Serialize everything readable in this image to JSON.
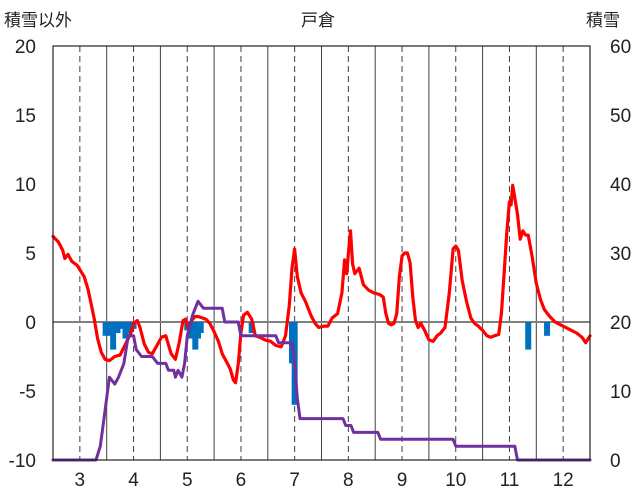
{
  "chart_data": {
    "type": "line",
    "title": "戸倉",
    "ylabel_left": "積雪以外",
    "ylabel_right": "積雪",
    "xlim": [
      2.5,
      12.5
    ],
    "ylim_left": [
      -10,
      20
    ],
    "ylim_right": [
      0,
      60
    ],
    "x_ticks": [
      3,
      4,
      5,
      6,
      7,
      8,
      9,
      10,
      11,
      12
    ],
    "y_ticks_left": [
      -10,
      -5,
      0,
      5,
      10,
      15,
      20
    ],
    "y_ticks_right": [
      0,
      10,
      20,
      30,
      40,
      50,
      60
    ],
    "grid": "vertical dashed at each x tick, vertical solid between ticks, horizontal zero line",
    "colors": {
      "temperature": "#ff0000",
      "snow_depth": "#7030a0",
      "precipitation": "#0070c0",
      "zero_line": "#808080",
      "grid": "#404040"
    },
    "series": [
      {
        "role": "temperature",
        "axis": "left",
        "kind": "line",
        "points": [
          [
            2.5,
            6.2
          ],
          [
            2.6,
            5.8
          ],
          [
            2.68,
            5.2
          ],
          [
            2.72,
            4.6
          ],
          [
            2.78,
            4.9
          ],
          [
            2.85,
            4.4
          ],
          [
            2.95,
            4.1
          ],
          [
            3.0,
            3.8
          ],
          [
            3.08,
            3.3
          ],
          [
            3.15,
            2.4
          ],
          [
            3.2,
            1.5
          ],
          [
            3.27,
            0.2
          ],
          [
            3.33,
            -1.2
          ],
          [
            3.4,
            -2.2
          ],
          [
            3.47,
            -2.7
          ],
          [
            3.55,
            -2.8
          ],
          [
            3.65,
            -2.5
          ],
          [
            3.75,
            -2.4
          ],
          [
            3.85,
            -1.6
          ],
          [
            3.95,
            -0.8
          ],
          [
            4.0,
            -0.1
          ],
          [
            4.07,
            0.1
          ],
          [
            4.12,
            -0.4
          ],
          [
            4.2,
            -1.6
          ],
          [
            4.28,
            -2.2
          ],
          [
            4.35,
            -2.3
          ],
          [
            4.45,
            -1.6
          ],
          [
            4.52,
            -1.1
          ],
          [
            4.6,
            -1.0
          ],
          [
            4.7,
            -2.3
          ],
          [
            4.78,
            -2.7
          ],
          [
            4.85,
            -1.5
          ],
          [
            4.92,
            0.1
          ],
          [
            4.97,
            0.2
          ],
          [
            5.02,
            -0.4
          ],
          [
            5.1,
            0.2
          ],
          [
            5.15,
            0.4
          ],
          [
            5.2,
            0.4
          ],
          [
            5.28,
            0.3
          ],
          [
            5.35,
            0.2
          ],
          [
            5.42,
            -0.1
          ],
          [
            5.5,
            -0.7
          ],
          [
            5.58,
            -1.4
          ],
          [
            5.65,
            -2.3
          ],
          [
            5.72,
            -2.8
          ],
          [
            5.8,
            -3.4
          ],
          [
            5.86,
            -4.2
          ],
          [
            5.9,
            -4.4
          ],
          [
            5.95,
            -3.0
          ],
          [
            6.0,
            -0.8
          ],
          [
            6.05,
            0.5
          ],
          [
            6.12,
            0.7
          ],
          [
            6.2,
            0.2
          ],
          [
            6.27,
            -1.0
          ],
          [
            6.35,
            -1.1
          ],
          [
            6.45,
            -1.3
          ],
          [
            6.55,
            -1.4
          ],
          [
            6.65,
            -1.7
          ],
          [
            6.75,
            -1.8
          ],
          [
            6.83,
            -1.0
          ],
          [
            6.9,
            1.2
          ],
          [
            6.95,
            3.9
          ],
          [
            7.0,
            5.3
          ],
          [
            7.05,
            3.3
          ],
          [
            7.12,
            2.1
          ],
          [
            7.2,
            1.5
          ],
          [
            7.3,
            0.5
          ],
          [
            7.38,
            -0.1
          ],
          [
            7.45,
            -0.4
          ],
          [
            7.55,
            -0.3
          ],
          [
            7.62,
            -0.3
          ],
          [
            7.7,
            0.3
          ],
          [
            7.8,
            0.6
          ],
          [
            7.88,
            2.1
          ],
          [
            7.93,
            4.5
          ],
          [
            7.97,
            3.5
          ],
          [
            8.0,
            5.0
          ],
          [
            8.04,
            6.6
          ],
          [
            8.08,
            4.2
          ],
          [
            8.12,
            3.5
          ],
          [
            8.2,
            3.9
          ],
          [
            8.28,
            2.7
          ],
          [
            8.38,
            2.3
          ],
          [
            8.48,
            2.1
          ],
          [
            8.58,
            2.0
          ],
          [
            8.65,
            1.8
          ],
          [
            8.7,
            0.6
          ],
          [
            8.75,
            -0.1
          ],
          [
            8.8,
            -0.2
          ],
          [
            8.85,
            -0.1
          ],
          [
            8.9,
            0.6
          ],
          [
            8.95,
            3.3
          ],
          [
            9.0,
            4.8
          ],
          [
            9.05,
            5.0
          ],
          [
            9.1,
            5.0
          ],
          [
            9.15,
            4.3
          ],
          [
            9.2,
            1.8
          ],
          [
            9.25,
            0.1
          ],
          [
            9.3,
            -0.4
          ],
          [
            9.35,
            -0.1
          ],
          [
            9.42,
            -0.6
          ],
          [
            9.5,
            -1.3
          ],
          [
            9.58,
            -1.4
          ],
          [
            9.65,
            -1.0
          ],
          [
            9.72,
            -0.8
          ],
          [
            9.8,
            -0.4
          ],
          [
            9.88,
            2.1
          ],
          [
            9.95,
            5.3
          ],
          [
            10.0,
            5.5
          ],
          [
            10.05,
            5.2
          ],
          [
            10.12,
            3.0
          ],
          [
            10.2,
            1.5
          ],
          [
            10.28,
            0.3
          ],
          [
            10.35,
            -0.1
          ],
          [
            10.42,
            -0.3
          ],
          [
            10.5,
            -0.6
          ],
          [
            10.58,
            -1.0
          ],
          [
            10.65,
            -1.1
          ],
          [
            10.72,
            -1.0
          ],
          [
            10.8,
            -0.9
          ],
          [
            10.85,
            0.6
          ],
          [
            10.9,
            3.5
          ],
          [
            10.95,
            6.5
          ],
          [
            11.0,
            8.7
          ],
          [
            11.03,
            8.5
          ],
          [
            11.06,
            9.9
          ],
          [
            11.1,
            9.0
          ],
          [
            11.15,
            7.8
          ],
          [
            11.2,
            6.0
          ],
          [
            11.25,
            6.6
          ],
          [
            11.3,
            6.3
          ],
          [
            11.35,
            6.3
          ],
          [
            11.42,
            4.8
          ],
          [
            11.5,
            2.8
          ],
          [
            11.58,
            1.6
          ],
          [
            11.65,
            0.9
          ],
          [
            11.75,
            0.4
          ],
          [
            11.85,
            0.0
          ],
          [
            11.95,
            -0.2
          ],
          [
            12.05,
            -0.4
          ],
          [
            12.15,
            -0.6
          ],
          [
            12.25,
            -0.8
          ],
          [
            12.35,
            -1.1
          ],
          [
            12.42,
            -1.5
          ],
          [
            12.5,
            -1.0
          ]
        ]
      },
      {
        "role": "snow_depth",
        "axis": "right",
        "kind": "step",
        "points": [
          [
            2.5,
            0
          ],
          [
            3.3,
            0
          ],
          [
            3.38,
            2
          ],
          [
            3.45,
            6
          ],
          [
            3.55,
            12
          ],
          [
            3.65,
            11
          ],
          [
            3.72,
            12
          ],
          [
            3.82,
            14
          ],
          [
            3.9,
            18
          ],
          [
            4.0,
            18
          ],
          [
            4.05,
            16
          ],
          [
            4.15,
            15
          ],
          [
            4.35,
            15
          ],
          [
            4.45,
            14
          ],
          [
            4.6,
            14
          ],
          [
            4.65,
            13
          ],
          [
            4.75,
            13
          ],
          [
            4.78,
            12
          ],
          [
            4.83,
            13
          ],
          [
            4.9,
            12
          ],
          [
            4.95,
            14
          ],
          [
            5.0,
            18
          ],
          [
            5.1,
            21
          ],
          [
            5.2,
            23
          ],
          [
            5.3,
            22
          ],
          [
            5.5,
            22
          ],
          [
            5.65,
            22
          ],
          [
            5.7,
            20
          ],
          [
            5.95,
            20
          ],
          [
            6.0,
            18
          ],
          [
            6.65,
            18
          ],
          [
            6.7,
            17
          ],
          [
            6.95,
            17
          ],
          [
            7.0,
            14
          ],
          [
            7.05,
            9
          ],
          [
            7.1,
            6
          ],
          [
            7.9,
            6
          ],
          [
            7.95,
            5
          ],
          [
            8.05,
            5
          ],
          [
            8.1,
            4
          ],
          [
            8.55,
            4
          ],
          [
            8.6,
            3
          ],
          [
            9.0,
            3
          ],
          [
            9.05,
            3
          ],
          [
            9.95,
            3
          ],
          [
            10.0,
            2
          ],
          [
            11.1,
            2
          ],
          [
            11.15,
            0
          ],
          [
            12.5,
            0
          ]
        ]
      },
      {
        "role": "precipitation",
        "axis": "left",
        "kind": "bars",
        "points": [
          [
            3.48,
            -1.0
          ],
          [
            3.55,
            -1.0
          ],
          [
            3.62,
            -2.0
          ],
          [
            3.7,
            -0.8
          ],
          [
            3.77,
            -0.5
          ],
          [
            3.85,
            -1.2
          ],
          [
            3.92,
            -0.8
          ],
          [
            4.0,
            -0.5
          ],
          [
            5.0,
            -0.6
          ],
          [
            5.08,
            -1.2
          ],
          [
            5.15,
            -2.0
          ],
          [
            5.2,
            -1.2
          ],
          [
            5.25,
            -0.8
          ],
          [
            6.2,
            -0.8
          ],
          [
            6.95,
            -3.0
          ],
          [
            7.0,
            -6.0
          ],
          [
            11.35,
            -2.0
          ],
          [
            11.7,
            -1.0
          ]
        ]
      }
    ]
  }
}
